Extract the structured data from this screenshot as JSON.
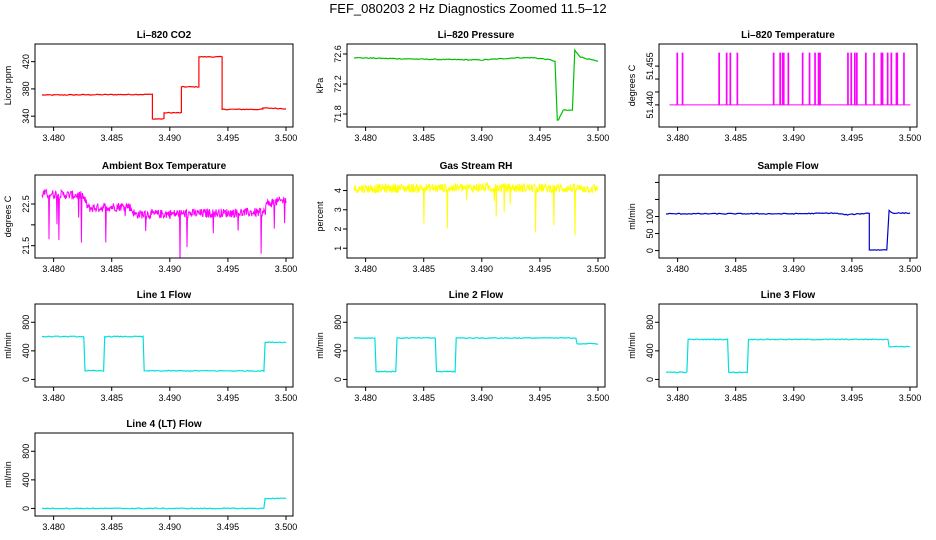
{
  "page_title": "FEF_080203  2 Hz Diagnostics Zoomed 11.5–12",
  "chart_data": [
    {
      "name": "Li–820 CO2",
      "type": "line",
      "color": "#ff0000",
      "ylabel": "Licor ppm",
      "xlim": [
        3.479,
        3.5
      ],
      "ylim": [
        330,
        440
      ],
      "xticks": [
        3.48,
        3.485,
        3.49,
        3.495,
        3.5
      ],
      "yticks": [
        {
          "v": 340,
          "t": "340"
        },
        {
          "v": 380,
          "t": "380"
        },
        {
          "v": 420,
          "t": "420"
        }
      ],
      "x": [
        3.479,
        3.4885,
        3.4885,
        3.4895,
        3.4895,
        3.491,
        3.491,
        3.4925,
        3.4925,
        3.4945,
        3.4945,
        3.498,
        3.498,
        3.5
      ],
      "y": [
        371,
        372,
        336,
        336,
        345,
        345,
        383,
        383,
        427,
        427,
        350,
        350,
        352,
        351
      ]
    },
    {
      "name": "Li–820 Pressure",
      "type": "line",
      "color": "#00c000",
      "ylabel": "kPa",
      "xlim": [
        3.479,
        3.5
      ],
      "ylim": [
        71.68,
        72.68
      ],
      "xticks": [
        3.48,
        3.485,
        3.49,
        3.495,
        3.5
      ],
      "yticks": [
        {
          "v": 71.8,
          "t": "71.8"
        },
        {
          "v": 72.2,
          "t": "72.2"
        },
        {
          "v": 72.6,
          "t": "72.6"
        }
      ],
      "x": [
        3.479,
        3.485,
        3.49,
        3.493,
        3.4945,
        3.496,
        3.4963,
        3.4965,
        3.4966,
        3.497,
        3.4978,
        3.498,
        3.4985,
        3.5
      ],
      "y": [
        72.55,
        72.53,
        72.52,
        72.55,
        72.55,
        72.52,
        72.5,
        71.72,
        71.72,
        71.85,
        71.85,
        72.65,
        72.56,
        72.5
      ]
    },
    {
      "name": "Li–820 Temperature",
      "type": "spikes",
      "color": "#ff00ff",
      "ylabel": "degrees C",
      "xlim": [
        3.479,
        3.5
      ],
      "ylim": [
        51.433,
        51.462
      ],
      "xticks": [
        3.48,
        3.485,
        3.49,
        3.495,
        3.5
      ],
      "yticks": [
        {
          "v": 51.44,
          "t": "51.440"
        },
        {
          "v": 51.445,
          "t": ""
        },
        {
          "v": 51.45,
          "t": ""
        },
        {
          "v": 51.455,
          "t": "51.455"
        }
      ],
      "base": 51.44,
      "top": 51.46
    },
    {
      "name": "Ambient Box Temperature",
      "type": "noisy",
      "color": "#ff00ff",
      "ylabel": "degrees C",
      "xlim": [
        3.479,
        3.5
      ],
      "ylim": [
        21.3,
        23.1
      ],
      "xticks": [
        3.48,
        3.485,
        3.49,
        3.495,
        3.5
      ],
      "yticks": [
        {
          "v": 21.5,
          "t": "21.5"
        },
        {
          "v": 22,
          "t": ""
        },
        {
          "v": 22.5,
          "t": "22.5"
        }
      ],
      "x": [
        3.479,
        3.4825,
        3.483,
        3.4865,
        3.487,
        3.4982,
        3.4983,
        3.5
      ],
      "y": [
        22.75,
        22.7,
        22.4,
        22.45,
        22.25,
        22.3,
        22.5,
        22.6
      ]
    },
    {
      "name": "Gas Stream RH",
      "type": "noisy",
      "color": "#ffff00",
      "ylabel": "percent",
      "xlim": [
        3.479,
        3.5
      ],
      "ylim": [
        0.7,
        4.6
      ],
      "xticks": [
        3.48,
        3.485,
        3.49,
        3.495,
        3.5
      ],
      "yticks": [
        {
          "v": 1,
          "t": "1"
        },
        {
          "v": 2,
          "t": "2"
        },
        {
          "v": 3,
          "t": "3"
        },
        {
          "v": 4,
          "t": "4"
        }
      ],
      "x": [
        3.479,
        3.49,
        3.5
      ],
      "y": [
        4.1,
        4.15,
        4.1
      ]
    },
    {
      "name": "Sample Flow",
      "type": "line",
      "color": "#0000cc",
      "ylabel": "ml/min",
      "xlim": [
        3.479,
        3.5
      ],
      "ylim": [
        -10,
        210
      ],
      "xticks": [
        3.48,
        3.485,
        3.49,
        3.495,
        3.5
      ],
      "yticks": [
        {
          "v": 0,
          "t": "0"
        },
        {
          "v": 50,
          "t": "50"
        },
        {
          "v": 100,
          "t": "100"
        },
        {
          "v": 150,
          "t": ""
        },
        {
          "v": 200,
          "t": ""
        }
      ],
      "x": [
        3.479,
        3.49,
        3.4935,
        3.4945,
        3.4965,
        3.4965,
        3.498,
        3.4982,
        3.4985,
        3.5
      ],
      "y": [
        108,
        108,
        110,
        105,
        110,
        2,
        2,
        118,
        110,
        110
      ]
    },
    {
      "name": "Line 1 Flow",
      "type": "line",
      "color": "#00e0e0",
      "ylabel": "ml/min",
      "xlim": [
        3.479,
        3.5
      ],
      "ylim": [
        -50,
        1000
      ],
      "xticks": [
        3.48,
        3.485,
        3.49,
        3.495,
        3.5
      ],
      "yticks": [
        {
          "v": 0,
          "t": "0"
        },
        {
          "v": 400,
          "t": "400"
        },
        {
          "v": 800,
          "t": "800"
        }
      ],
      "x": [
        3.479,
        3.4826,
        3.4827,
        3.4843,
        3.4844,
        3.4877,
        3.4878,
        3.4981,
        3.4982,
        3.5
      ],
      "y": [
        600,
        600,
        120,
        120,
        600,
        600,
        120,
        120,
        520,
        520
      ]
    },
    {
      "name": "Line 2 Flow",
      "type": "line",
      "color": "#00e0e0",
      "ylabel": "ml/min",
      "xlim": [
        3.479,
        3.5
      ],
      "ylim": [
        -50,
        1000
      ],
      "xticks": [
        3.48,
        3.485,
        3.49,
        3.495,
        3.5
      ],
      "yticks": [
        {
          "v": 0,
          "t": "0"
        },
        {
          "v": 400,
          "t": "400"
        },
        {
          "v": 800,
          "t": "800"
        }
      ],
      "x": [
        3.479,
        3.4808,
        3.4809,
        3.4826,
        3.4827,
        3.486,
        3.4861,
        3.4877,
        3.4878,
        3.4981,
        3.4982,
        3.5
      ],
      "y": [
        580,
        580,
        110,
        110,
        580,
        580,
        110,
        110,
        580,
        580,
        500,
        500
      ]
    },
    {
      "name": "Line 3 Flow",
      "type": "line",
      "color": "#00e0e0",
      "ylabel": "ml/min",
      "xlim": [
        3.479,
        3.5
      ],
      "ylim": [
        -50,
        1000
      ],
      "xticks": [
        3.48,
        3.485,
        3.49,
        3.495,
        3.5
      ],
      "yticks": [
        {
          "v": 0,
          "t": "0"
        },
        {
          "v": 400,
          "t": "400"
        },
        {
          "v": 800,
          "t": "800"
        }
      ],
      "x": [
        3.479,
        3.4808,
        3.4809,
        3.4843,
        3.4844,
        3.486,
        3.4861,
        3.4981,
        3.4982,
        3.5
      ],
      "y": [
        100,
        100,
        560,
        560,
        100,
        100,
        560,
        560,
        460,
        460
      ]
    },
    {
      "name": "Line 4 (LT) Flow",
      "type": "line",
      "color": "#00e0e0",
      "ylabel": "ml/min",
      "xlim": [
        3.479,
        3.5
      ],
      "ylim": [
        -50,
        1000
      ],
      "xticks": [
        3.48,
        3.485,
        3.49,
        3.495,
        3.5
      ],
      "yticks": [
        {
          "v": 0,
          "t": "0"
        },
        {
          "v": 400,
          "t": "400"
        },
        {
          "v": 800,
          "t": "800"
        }
      ],
      "x": [
        3.479,
        3.4981,
        3.4982,
        3.5
      ],
      "y": [
        0,
        0,
        140,
        140
      ]
    }
  ]
}
